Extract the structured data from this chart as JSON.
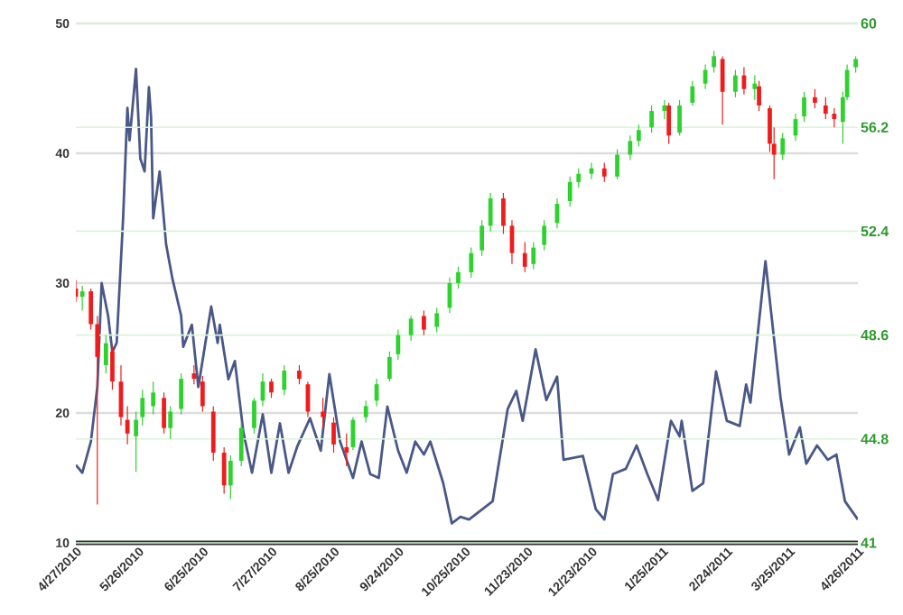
{
  "chart_data": {
    "type": "candlestick",
    "grid": "y",
    "xlim": [
      "2010-04-27",
      "2011-04-26"
    ],
    "xticks": [
      {
        "value": "2010-04-27",
        "label": "4/27/2010"
      },
      {
        "value": "2010-05-26",
        "label": "5/26/2010"
      },
      {
        "value": "2010-06-25",
        "label": "6/25/2010"
      },
      {
        "value": "2010-07-27",
        "label": "7/27/2010"
      },
      {
        "value": "2010-08-25",
        "label": "8/25/2010"
      },
      {
        "value": "2010-09-24",
        "label": "9/24/2010"
      },
      {
        "value": "2010-10-25",
        "label": "10/25/2010"
      },
      {
        "value": "2010-11-23",
        "label": "11/23/2010"
      },
      {
        "value": "2010-12-23",
        "label": "12/23/2010"
      },
      {
        "value": "2011-01-25",
        "label": "1/25/2011"
      },
      {
        "value": "2011-02-24",
        "label": "2/24/2011"
      },
      {
        "value": "2011-03-25",
        "label": "3/25/2011"
      },
      {
        "value": "2011-04-26",
        "label": "4/26/2011"
      }
    ],
    "ylim": [
      10,
      50
    ],
    "yticks": [
      10,
      20,
      30,
      40,
      50
    ],
    "y2lim": [
      41,
      60
    ],
    "y2ticks": [
      41,
      44.8,
      48.6,
      52.4,
      56.2,
      60
    ],
    "series": [
      {
        "type": "line",
        "color": "#4a5888",
        "x": [
          "2010-04-27",
          "2010-04-30",
          "2010-05-04",
          "2010-05-07",
          "2010-05-09",
          "2010-05-12",
          "2010-05-14",
          "2010-05-16",
          "2010-05-19",
          "2010-05-21",
          "2010-05-22",
          "2010-05-25",
          "2010-05-27",
          "2010-05-29",
          "2010-05-31",
          "2010-06-01",
          "2010-06-02",
          "2010-06-05",
          "2010-06-08",
          "2010-06-11",
          "2010-06-15",
          "2010-06-16",
          "2010-06-20",
          "2010-06-23",
          "2010-06-29",
          "2010-07-02",
          "2010-07-03",
          "2010-07-07",
          "2010-07-10",
          "2010-07-14",
          "2010-07-18",
          "2010-07-23",
          "2010-07-27",
          "2010-07-31",
          "2010-08-04",
          "2010-08-08",
          "2010-08-14",
          "2010-08-19",
          "2010-08-23",
          "2010-08-28",
          "2010-09-03",
          "2010-09-07",
          "2010-09-11",
          "2010-09-15",
          "2010-09-19",
          "2010-09-24",
          "2010-09-28",
          "2010-10-02",
          "2010-10-06",
          "2010-10-09",
          "2010-10-15",
          "2010-10-19",
          "2010-10-23",
          "2010-10-27",
          "2010-11-07",
          "2010-11-14",
          "2010-11-18",
          "2010-11-21",
          "2010-11-27",
          "2010-12-02",
          "2010-12-07",
          "2010-12-10",
          "2010-12-19",
          "2010-12-25",
          "2010-12-29",
          "2011-01-02",
          "2011-01-08",
          "2011-01-13",
          "2011-01-18",
          "2011-01-23",
          "2011-01-29",
          "2011-02-02",
          "2011-02-03",
          "2011-02-08",
          "2011-02-13",
          "2011-02-19",
          "2011-02-24",
          "2011-03-02",
          "2011-03-05",
          "2011-03-07",
          "2011-03-14",
          "2011-03-21",
          "2011-03-25",
          "2011-03-30",
          "2011-04-02",
          "2011-04-07",
          "2011-04-12",
          "2011-04-16",
          "2011-04-20",
          "2011-04-26"
        ],
        "values": [
          16.0,
          15.4,
          17.8,
          22,
          30,
          27.5,
          24.7,
          25.4,
          35,
          43.5,
          41,
          46.5,
          39.6,
          38.6,
          45.1,
          42.8,
          35,
          38.6,
          33,
          30.3,
          27.5,
          25.1,
          26.8,
          22,
          28.2,
          25.4,
          26.8,
          22.6,
          24,
          18.5,
          15.4,
          19.9,
          15.4,
          19.2,
          15.4,
          17.4,
          19.6,
          17.1,
          23,
          17.8,
          15,
          17.8,
          15.3,
          15,
          20.5,
          17.1,
          15.4,
          17.8,
          16.8,
          17.8,
          14.6,
          11.5,
          12,
          11.8,
          13.2,
          20.3,
          21.7,
          19.4,
          24.9,
          21.0,
          22.8,
          16.4,
          16.7,
          12.6,
          11.8,
          15.3,
          15.7,
          17.5,
          15.3,
          13.3,
          19.4,
          18.2,
          19.4,
          14.0,
          14.6,
          23.2,
          19.4,
          19.0,
          22.2,
          20.8,
          31.7,
          21.2,
          16.8,
          18.9,
          16.1,
          17.5,
          16.4,
          16.8,
          13.2,
          11.8
        ]
      },
      {
        "axis": "y2",
        "x": [
          "2010-04-27",
          "2010-04-30",
          "2010-05-04",
          "2010-05-07",
          "2010-05-11",
          "2010-05-14",
          "2010-05-18",
          "2010-05-21",
          "2010-05-25",
          "2010-05-28",
          "2010-06-02",
          "2010-06-07",
          "2010-06-10",
          "2010-06-15",
          "2010-06-21",
          "2010-06-25",
          "2010-06-30",
          "2010-07-05",
          "2010-07-08",
          "2010-07-13",
          "2010-07-19",
          "2010-07-23",
          "2010-07-27",
          "2010-08-02",
          "2010-08-09",
          "2010-08-13",
          "2010-08-20",
          "2010-08-25",
          "2010-08-31",
          "2010-09-03",
          "2010-09-09",
          "2010-09-14",
          "2010-09-20",
          "2010-09-24",
          "2010-09-30",
          "2010-10-06",
          "2010-10-12",
          "2010-10-18",
          "2010-10-22",
          "2010-10-28",
          "2010-11-02",
          "2010-11-06",
          "2010-11-12",
          "2010-11-16",
          "2010-11-22",
          "2010-11-26",
          "2010-12-01",
          "2010-12-07",
          "2010-12-13",
          "2010-12-17",
          "2010-12-23",
          "2010-12-29",
          "2011-01-04",
          "2011-01-10",
          "2011-01-14",
          "2011-01-20",
          "2011-01-26",
          "2011-01-28",
          "2011-02-02",
          "2011-02-08",
          "2011-02-14",
          "2011-02-18",
          "2011-02-22",
          "2011-02-28",
          "2011-03-04",
          "2011-03-09",
          "2011-03-11",
          "2011-03-16",
          "2011-03-18",
          "2011-03-22",
          "2011-03-28",
          "2011-04-01",
          "2011-04-06",
          "2011-04-11",
          "2011-04-15",
          "2011-04-19",
          "2011-04-21",
          "2011-04-25"
        ],
        "ohlc": [
          [
            50.3,
            50.6,
            49.8,
            50.0
          ],
          [
            50.0,
            50.4,
            49.5,
            50.2
          ],
          [
            50.2,
            50.3,
            48.8,
            49.0
          ],
          [
            49.0,
            49.3,
            42.4,
            47.8
          ],
          [
            47.5,
            48.6,
            47.2,
            48.3
          ],
          [
            48.0,
            48.2,
            46.6,
            46.9
          ],
          [
            46.9,
            47.5,
            45.3,
            45.6
          ],
          [
            45.5,
            46.0,
            44.6,
            45.0
          ],
          [
            44.9,
            45.8,
            43.6,
            45.5
          ],
          [
            45.6,
            46.6,
            45.3,
            46.3
          ],
          [
            46.0,
            46.9,
            45.7,
            46.5
          ],
          [
            46.3,
            46.5,
            45.0,
            45.2
          ],
          [
            45.2,
            46.0,
            44.8,
            45.8
          ],
          [
            45.9,
            47.2,
            45.7,
            47.0
          ],
          [
            47.2,
            47.5,
            46.8,
            47.0
          ],
          [
            46.9,
            47.1,
            45.8,
            46.0
          ],
          [
            45.8,
            46.0,
            44.0,
            44.3
          ],
          [
            44.3,
            44.5,
            42.8,
            43.1
          ],
          [
            43.1,
            44.2,
            42.6,
            44.0
          ],
          [
            44.0,
            45.4,
            43.8,
            45.2
          ],
          [
            45.2,
            46.3,
            45.0,
            46.2
          ],
          [
            46.2,
            47.2,
            46.0,
            46.9
          ],
          [
            46.9,
            47.0,
            46.3,
            46.5
          ],
          [
            46.6,
            47.5,
            46.4,
            47.3
          ],
          [
            47.3,
            47.5,
            46.8,
            47.0
          ],
          [
            46.8,
            46.9,
            45.6,
            45.8
          ],
          [
            45.8,
            46.3,
            45.2,
            45.6
          ],
          [
            45.4,
            45.6,
            44.3,
            44.6
          ],
          [
            44.5,
            45.0,
            43.8,
            44.3
          ],
          [
            44.5,
            45.6,
            44.4,
            45.5
          ],
          [
            45.6,
            46.2,
            45.4,
            46.0
          ],
          [
            46.2,
            47.0,
            46.0,
            46.8
          ],
          [
            47.0,
            48.0,
            46.9,
            47.8
          ],
          [
            47.9,
            48.8,
            47.7,
            48.6
          ],
          [
            48.6,
            49.3,
            48.4,
            49.2
          ],
          [
            49.3,
            49.5,
            48.6,
            48.8
          ],
          [
            48.9,
            49.6,
            48.7,
            49.4
          ],
          [
            49.6,
            50.7,
            49.4,
            50.5
          ],
          [
            50.5,
            51.1,
            50.3,
            50.9
          ],
          [
            50.9,
            51.8,
            50.7,
            51.6
          ],
          [
            51.7,
            52.8,
            51.5,
            52.6
          ],
          [
            52.6,
            53.8,
            52.4,
            53.6
          ],
          [
            53.6,
            53.8,
            52.3,
            52.6
          ],
          [
            52.6,
            52.8,
            51.2,
            51.6
          ],
          [
            51.6,
            52.0,
            50.9,
            51.1
          ],
          [
            51.2,
            52.0,
            51.0,
            51.8
          ],
          [
            51.9,
            52.8,
            51.7,
            52.6
          ],
          [
            52.7,
            53.6,
            52.5,
            53.4
          ],
          [
            53.5,
            54.4,
            53.3,
            54.2
          ],
          [
            54.2,
            54.7,
            54.0,
            54.5
          ],
          [
            54.5,
            54.9,
            54.3,
            54.7
          ],
          [
            54.7,
            54.9,
            54.2,
            54.4
          ],
          [
            54.4,
            55.4,
            54.3,
            55.2
          ],
          [
            55.2,
            55.9,
            55.0,
            55.7
          ],
          [
            55.7,
            56.3,
            55.5,
            56.1
          ],
          [
            56.2,
            57.0,
            56.0,
            56.8
          ],
          [
            56.8,
            57.2,
            56.5,
            57.0
          ],
          [
            57.0,
            57.1,
            55.6,
            55.9
          ],
          [
            56.0,
            57.2,
            55.9,
            57.0
          ],
          [
            57.1,
            57.9,
            57.0,
            57.7
          ],
          [
            57.8,
            58.5,
            57.6,
            58.3
          ],
          [
            58.4,
            59.0,
            58.2,
            58.8
          ],
          [
            58.7,
            58.8,
            56.3,
            57.5
          ],
          [
            57.5,
            58.3,
            57.3,
            58.1
          ],
          [
            58.1,
            58.4,
            57.4,
            57.6
          ],
          [
            57.6,
            58.1,
            57.2,
            57.8
          ],
          [
            57.7,
            57.9,
            56.8,
            57.0
          ],
          [
            56.9,
            57.0,
            55.3,
            55.6
          ],
          [
            55.6,
            56.2,
            54.3,
            55.2
          ],
          [
            55.2,
            56.0,
            55.0,
            55.8
          ],
          [
            55.9,
            56.7,
            55.7,
            56.5
          ],
          [
            56.6,
            57.5,
            56.4,
            57.3
          ],
          [
            57.3,
            57.6,
            56.9,
            57.1
          ],
          [
            57.0,
            57.3,
            56.5,
            56.7
          ],
          [
            56.7,
            56.9,
            56.2,
            56.5
          ],
          [
            56.4,
            57.5,
            55.6,
            57.3
          ],
          [
            57.3,
            58.5,
            57.2,
            58.3
          ],
          [
            58.4,
            58.8,
            58.2,
            58.7
          ]
        ],
        "colors": [
          "#ee1c1c",
          "#2ed12e",
          "#ee1c1c",
          "#ee1c1c",
          "#2ed12e",
          "#ee1c1c",
          "#ee1c1c",
          "#ee1c1c",
          "#2ed12e",
          "#2ed12e",
          "#2ed12e",
          "#ee1c1c",
          "#2ed12e",
          "#2ed12e",
          "#ee1c1c",
          "#ee1c1c",
          "#ee1c1c",
          "#ee1c1c",
          "#2ed12e",
          "#2ed12e",
          "#2ed12e",
          "#2ed12e",
          "#ee1c1c",
          "#2ed12e",
          "#ee1c1c",
          "#ee1c1c",
          "#ee1c1c",
          "#ee1c1c",
          "#ee1c1c",
          "#2ed12e",
          "#2ed12e",
          "#2ed12e",
          "#2ed12e",
          "#2ed12e",
          "#2ed12e",
          "#ee1c1c",
          "#2ed12e",
          "#2ed12e",
          "#2ed12e",
          "#2ed12e",
          "#2ed12e",
          "#2ed12e",
          "#ee1c1c",
          "#ee1c1c",
          "#ee1c1c",
          "#2ed12e",
          "#2ed12e",
          "#2ed12e",
          "#2ed12e",
          "#2ed12e",
          "#2ed12e",
          "#ee1c1c",
          "#2ed12e",
          "#2ed12e",
          "#2ed12e",
          "#2ed12e",
          "#2ed12e",
          "#ee1c1c",
          "#2ed12e",
          "#2ed12e",
          "#2ed12e",
          "#2ed12e",
          "#ee1c1c",
          "#2ed12e",
          "#ee1c1c",
          "#2ed12e",
          "#ee1c1c",
          "#ee1c1c",
          "#ee1c1c",
          "#2ed12e",
          "#2ed12e",
          "#2ed12e",
          "#ee1c1c",
          "#ee1c1c",
          "#ee1c1c",
          "#2ed12e",
          "#2ed12e",
          "#2ed12e"
        ]
      }
    ]
  }
}
